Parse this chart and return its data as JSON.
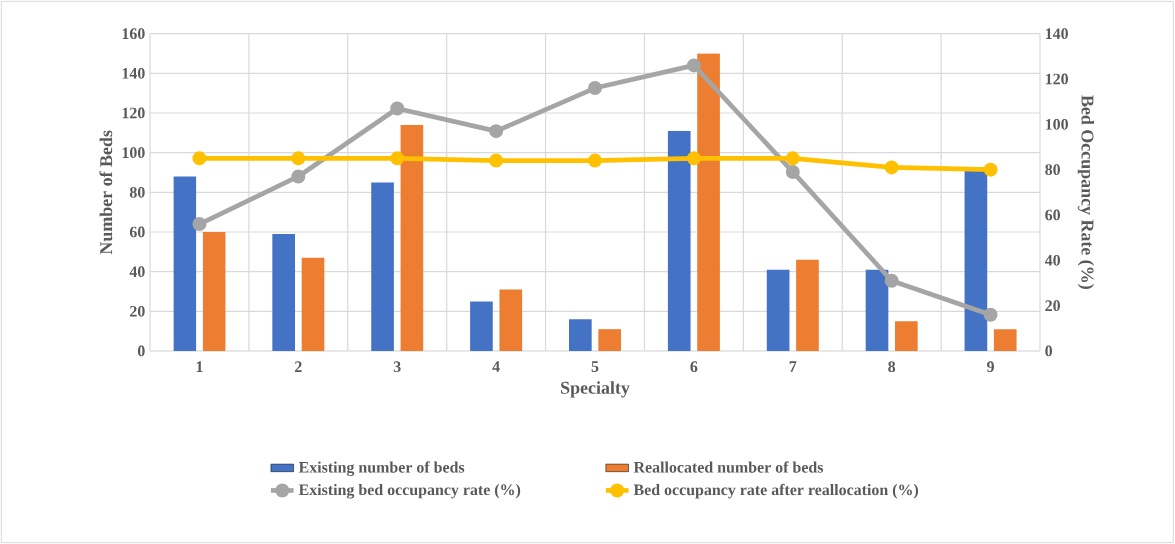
{
  "chart_data": {
    "type": "bar",
    "xlabel": "Specialty",
    "ylabel": "Number of Beds",
    "y2label": "Bed Occupancy Rate (%)",
    "categories": [
      "1",
      "2",
      "3",
      "4",
      "5",
      "6",
      "7",
      "8",
      "9"
    ],
    "series": [
      {
        "name": "Existing number of beds",
        "color": "#4472c4",
        "values": [
          88,
          59,
          85,
          25,
          16,
          111,
          41,
          41,
          91
        ]
      },
      {
        "name": "Reallocated number of beds",
        "color": "#ed7d31",
        "values": [
          60,
          47,
          114,
          31,
          11,
          150,
          46,
          15,
          11
        ]
      },
      {
        "name": "Existing bed occupancy rate (%)",
        "type": "line",
        "axis": "y2",
        "marker": "circle",
        "color": "#a5a5a5",
        "values": [
          56,
          77,
          107,
          97,
          116,
          126,
          79,
          31,
          16
        ]
      },
      {
        "name": "Bed occupancy rate after reallocation (%)",
        "type": "line",
        "axis": "y2",
        "marker": "circle",
        "color": "#ffc000",
        "values": [
          85,
          85,
          85,
          84,
          84,
          85,
          85,
          81,
          80
        ]
      }
    ],
    "ylim": [
      0,
      160
    ],
    "yticks": [
      0,
      20,
      40,
      60,
      80,
      100,
      120,
      140,
      160
    ],
    "y2lim": [
      0,
      140
    ],
    "y2ticks": [
      0,
      20,
      40,
      60,
      80,
      100,
      120,
      140
    ],
    "grid": true,
    "legend": "bottom"
  }
}
